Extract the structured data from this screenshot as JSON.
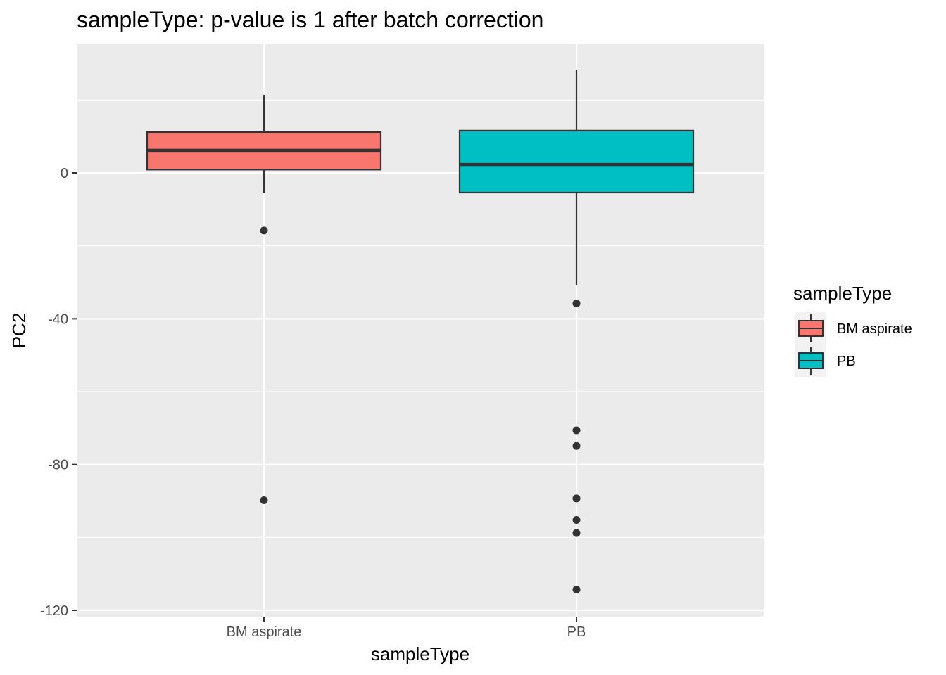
{
  "chart_data": {
    "type": "boxplot",
    "title": "sampleType: p-value is 1 after batch correction",
    "xlabel": "sampleType",
    "ylabel": "PC2",
    "ylim": [
      -121,
      36
    ],
    "yticks": [
      0,
      -40,
      -80,
      -120
    ],
    "categories": [
      "BM aspirate",
      "PB"
    ],
    "grid": true,
    "legend": {
      "title": "sampleType",
      "position": "right",
      "entries": [
        "BM aspirate",
        "PB"
      ]
    },
    "series": [
      {
        "category": "BM aspirate",
        "color": "#F8766D",
        "whisker_low": -5.6,
        "q1": 0.9,
        "median": 6.2,
        "q3": 11.2,
        "whisker_high": 21.4,
        "outliers": [
          -15.8,
          -89.8
        ]
      },
      {
        "category": "PB",
        "color": "#00BFC4",
        "whisker_low": -30.8,
        "q1": -5.4,
        "median": 2.3,
        "q3": 11.6,
        "whisker_high": 28.2,
        "outliers": [
          -35.8,
          -70.6,
          -74.9,
          -89.3,
          -95.2,
          -98.8,
          -114.3
        ]
      }
    ]
  }
}
